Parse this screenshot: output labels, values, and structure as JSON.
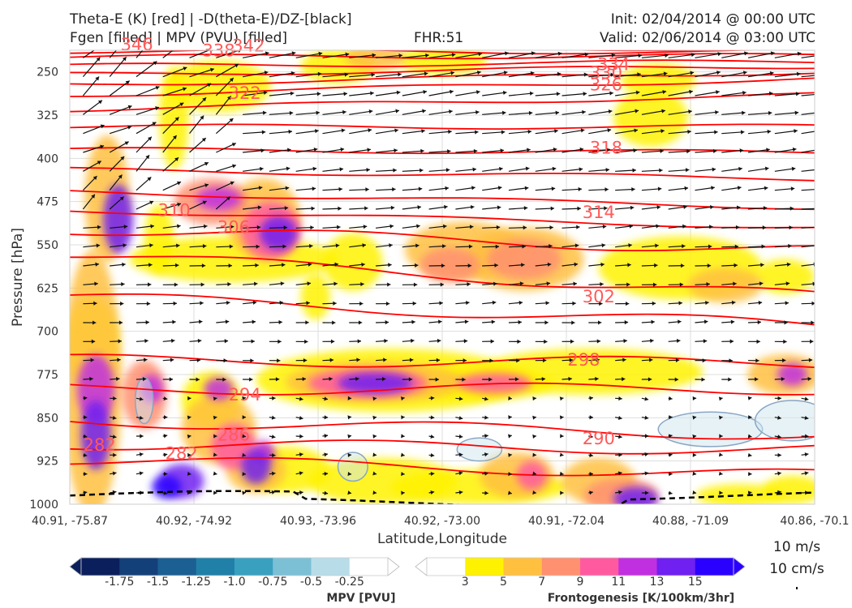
{
  "header": {
    "title_left_1": "Theta-E (K) [red] | -D(theta-E)/DZ-[black]",
    "title_left_2": "Fgen [filled] | MPV (PVU) [filled]",
    "title_center": "FHR:51",
    "title_right_1": "Init: 02/04/2014 @ 00:00 UTC",
    "title_right_2": "Valid: 02/06/2014 @ 03:00 UTC"
  },
  "chart_data": {
    "type": "cross-section",
    "xlabel": "Latitude,Longitude",
    "ylabel": "Pressure [hPa]",
    "ylim": [
      1000,
      200
    ],
    "x_ticks": [
      "40.91, -75.87",
      "40.92, -74.92",
      "40.93, -73.96",
      "40.92, -73.00",
      "40.91, -72.04",
      "40.88, -71.09",
      "40.86, -70.1"
    ],
    "y_ticks": [
      250,
      325,
      400,
      475,
      550,
      625,
      700,
      775,
      850,
      925,
      1000
    ],
    "grid": true,
    "theta_e_contours": [
      {
        "label": "346",
        "x": 0.09,
        "p": 203
      },
      {
        "label": "338",
        "x": 0.2,
        "p": 213
      },
      {
        "label": "342",
        "x": 0.24,
        "p": 205
      },
      {
        "label": "334",
        "x": 0.73,
        "p": 237
      },
      {
        "label": "330",
        "x": 0.72,
        "p": 252
      },
      {
        "label": "326",
        "x": 0.72,
        "p": 272
      },
      {
        "label": "322",
        "x": 0.235,
        "p": 287
      },
      {
        "label": "318",
        "x": 0.72,
        "p": 382
      },
      {
        "label": "314",
        "x": 0.71,
        "p": 494
      },
      {
        "label": "310",
        "x": 0.14,
        "p": 490
      },
      {
        "label": "306",
        "x": 0.22,
        "p": 520
      },
      {
        "label": "302",
        "x": 0.71,
        "p": 640
      },
      {
        "label": "298",
        "x": 0.69,
        "p": 750
      },
      {
        "label": "294",
        "x": 0.235,
        "p": 810
      },
      {
        "label": "290",
        "x": 0.71,
        "p": 886
      },
      {
        "label": "286",
        "x": 0.22,
        "p": 880
      },
      {
        "label": "282",
        "x": 0.15,
        "p": 912
      },
      {
        "label": "282",
        "x": 0.04,
        "p": 897
      }
    ],
    "fgen_colorbar": {
      "label": "Frontogenesis [K/100km/3hr]",
      "ticks": [
        "3",
        "5",
        "7",
        "9",
        "11",
        "13",
        "15"
      ],
      "colors": [
        "#ffffff",
        "#fff200",
        "#ffc040",
        "#ff9070",
        "#ff5aa0",
        "#c030e0",
        "#7020f0",
        "#2a00ff"
      ]
    },
    "mpv_colorbar": {
      "label": "MPV [PVU]",
      "ticks": [
        "-1.75",
        "-1.5",
        "-1.25",
        "-1.0",
        "-0.75",
        "-0.5",
        "-0.25"
      ],
      "colors": [
        "#0b1f5c",
        "#14407a",
        "#1c5f92",
        "#2180a8",
        "#3aa0c0",
        "#7cc0d6",
        "#b8dde8",
        "#ffffff"
      ]
    },
    "wind_reference": {
      "line1": "10 m/s",
      "line2": "10 cm/s"
    }
  },
  "colors": {
    "theta_e": "#ff0000",
    "theta_e_label": "#ff5a5a",
    "vectors": "#111111",
    "surface": "#000000"
  }
}
